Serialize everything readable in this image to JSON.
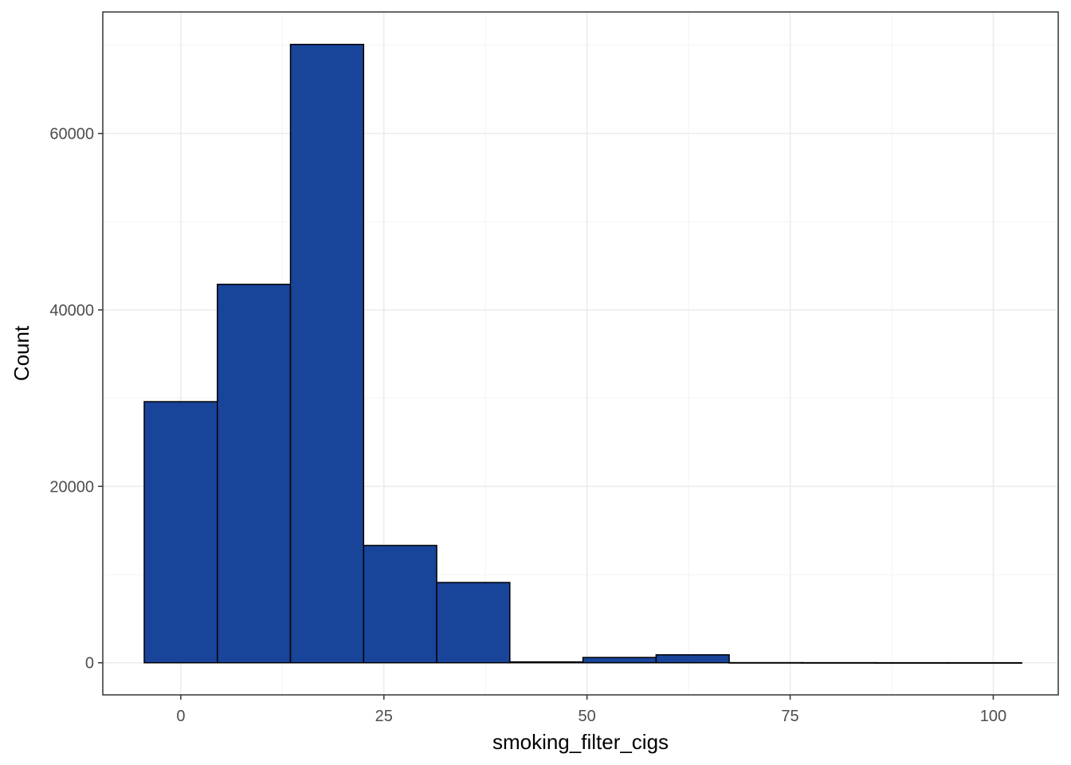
{
  "chart_data": {
    "type": "bar",
    "xlabel": "smoking_filter_cigs",
    "ylabel": "Count",
    "xlim": [
      -9.6,
      108.0
    ],
    "ylim": [
      -3640,
      73780
    ],
    "x_ticks": [
      0,
      25,
      50,
      75,
      100
    ],
    "x_tick_labels": [
      "0",
      "25",
      "50",
      "75",
      "100"
    ],
    "y_ticks": [
      0,
      20000,
      40000,
      60000
    ],
    "y_tick_labels": [
      "0",
      "20000",
      "40000",
      "60000"
    ],
    "grid": true,
    "legend": "none",
    "bins": [
      {
        "x0": -4.5,
        "x1": 4.5,
        "count": 29600
      },
      {
        "x0": 4.5,
        "x1": 13.5,
        "count": 42900
      },
      {
        "x0": 13.5,
        "x1": 22.5,
        "count": 70100
      },
      {
        "x0": 22.5,
        "x1": 31.5,
        "count": 13300
      },
      {
        "x0": 31.5,
        "x1": 40.5,
        "count": 9100
      },
      {
        "x0": 40.5,
        "x1": 49.5,
        "count": 100
      },
      {
        "x0": 49.5,
        "x1": 58.5,
        "count": 600
      },
      {
        "x0": 58.5,
        "x1": 67.5,
        "count": 900
      },
      {
        "x0": 67.5,
        "x1": 76.5,
        "count": 15
      },
      {
        "x0": 76.5,
        "x1": 85.5,
        "count": 10
      },
      {
        "x0": 85.5,
        "x1": 94.5,
        "count": 5
      },
      {
        "x0": 94.5,
        "x1": 103.5,
        "count": 5
      }
    ]
  },
  "colors": {
    "bar_fill": "#18449A",
    "bar_stroke": "#000000",
    "grid_major": "#ebebeb",
    "grid_minor": "#f3f3f3",
    "panel_border": "#333333",
    "tick_text": "#4d4d4d"
  }
}
